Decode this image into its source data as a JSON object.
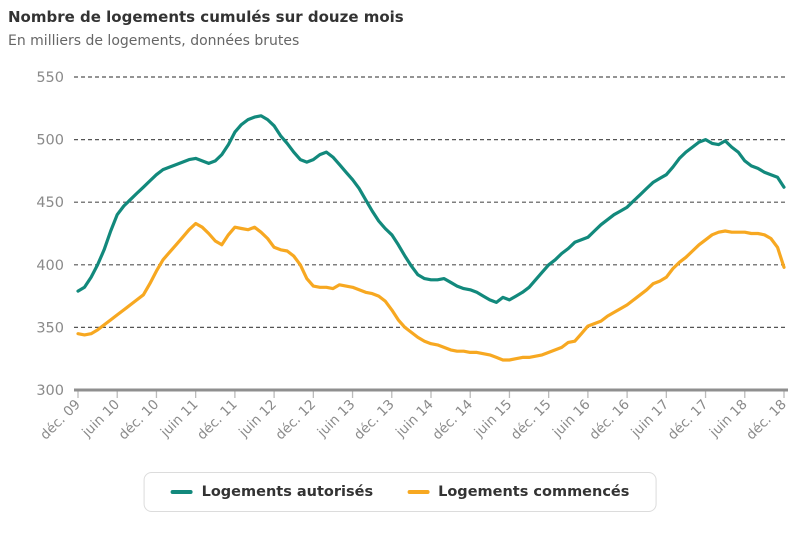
{
  "header": {
    "title": "Nombre de logements cumulés sur douze mois",
    "subtitle": "En milliers de logements, données brutes"
  },
  "colors": {
    "autorises": "#12897C",
    "commences": "#F7A821",
    "grid": "#555555",
    "axis": "#8F8F8F",
    "tick": "#BBBBBB",
    "tick_label": "#8A8A8A",
    "title": "#333333",
    "subtitle": "#666666"
  },
  "legend": {
    "items": [
      {
        "label": "Logements autorisés",
        "color": "#12897C"
      },
      {
        "label": "Logements commencés",
        "color": "#F7A821"
      }
    ]
  },
  "chart_data": {
    "type": "line",
    "title": "Nombre de logements cumulés sur douze mois",
    "subtitle": "En milliers de logements, données brutes",
    "unit": "milliers de logements",
    "x_start": "déc. 09",
    "x_end": "déc. 18",
    "x_frequency": "monthly",
    "x_tick_labels": [
      "déc. 09",
      "juin 10",
      "déc. 10",
      "juin 11",
      "déc. 11",
      "juin 12",
      "déc. 12",
      "juin 13",
      "déc. 13",
      "juin 14",
      "déc. 14",
      "juin 15",
      "déc. 15",
      "juin 16",
      "déc. 16",
      "juin 17",
      "déc. 17",
      "juin 18",
      "déc. 18"
    ],
    "months_per_tick": 6,
    "ylim": [
      300,
      550
    ],
    "y_ticks": [
      300,
      350,
      400,
      450,
      500,
      550
    ],
    "grid": "dashed-horizontal",
    "legend_position": "bottom",
    "series": [
      {
        "name": "Logements autorisés",
        "color": "#12897C",
        "values": [
          379,
          382,
          390,
          400,
          412,
          427,
          440,
          447,
          452,
          457,
          462,
          467,
          472,
          476,
          478,
          480,
          482,
          484,
          485,
          483,
          481,
          483,
          488,
          496,
          506,
          512,
          516,
          518,
          519,
          516,
          511,
          503,
          497,
          490,
          484,
          482,
          484,
          488,
          490,
          486,
          480,
          474,
          468,
          461,
          452,
          443,
          435,
          429,
          424,
          416,
          407,
          399,
          392,
          389,
          388,
          388,
          389,
          386,
          383,
          381,
          380,
          378,
          375,
          372,
          370,
          374,
          372,
          375,
          378,
          382,
          388,
          394,
          400,
          404,
          409,
          413,
          418,
          420,
          422,
          427,
          432,
          436,
          440,
          443,
          446,
          451,
          456,
          461,
          466,
          469,
          472,
          478,
          485,
          490,
          494,
          498,
          500,
          497,
          496,
          499,
          494,
          490,
          483,
          479,
          477,
          474,
          472,
          470,
          462
        ]
      },
      {
        "name": "Logements commencés",
        "color": "#F7A821",
        "values": [
          345,
          344,
          345,
          348,
          352,
          356,
          360,
          364,
          368,
          372,
          376,
          385,
          395,
          404,
          410,
          416,
          422,
          428,
          433,
          430,
          425,
          419,
          416,
          424,
          430,
          429,
          428,
          430,
          426,
          421,
          414,
          412,
          411,
          407,
          400,
          389,
          383,
          382,
          382,
          381,
          384,
          383,
          382,
          380,
          378,
          377,
          375,
          371,
          364,
          356,
          350,
          346,
          342,
          339,
          337,
          336,
          334,
          332,
          331,
          331,
          330,
          330,
          329,
          328,
          326,
          324,
          324,
          325,
          326,
          326,
          327,
          328,
          330,
          332,
          334,
          338,
          339,
          345,
          351,
          353,
          355,
          359,
          362,
          365,
          368,
          372,
          376,
          380,
          385,
          387,
          390,
          397,
          402,
          406,
          411,
          416,
          420,
          424,
          426,
          427,
          426,
          426,
          426,
          425,
          425,
          424,
          421,
          414,
          398
        ]
      }
    ]
  }
}
